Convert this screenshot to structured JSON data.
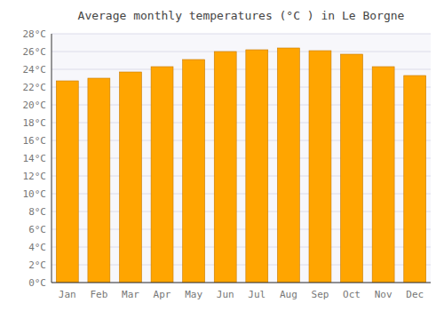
{
  "chart_data": {
    "type": "bar",
    "title": "Average monthly temperatures (°C ) in Le Borgne",
    "categories": [
      "Jan",
      "Feb",
      "Mar",
      "Apr",
      "May",
      "Jun",
      "Jul",
      "Aug",
      "Sep",
      "Oct",
      "Nov",
      "Dec"
    ],
    "values": [
      22.7,
      23.0,
      23.7,
      24.3,
      25.1,
      26.0,
      26.2,
      26.4,
      26.1,
      25.7,
      24.3,
      23.3
    ],
    "color": "#FFA500",
    "ylim": [
      0,
      28
    ],
    "yticks": [
      {
        "value": 0,
        "label": "0°C"
      },
      {
        "value": 2,
        "label": "2°C"
      },
      {
        "value": 4,
        "label": "4°C"
      },
      {
        "value": 6,
        "label": "6°C"
      },
      {
        "value": 8,
        "label": "8°C"
      },
      {
        "value": 10,
        "label": "10°C"
      },
      {
        "value": 12,
        "label": "12°C"
      },
      {
        "value": 14,
        "label": "14°C"
      },
      {
        "value": 16,
        "label": "16°C"
      },
      {
        "value": 18,
        "label": "18°C"
      },
      {
        "value": 20,
        "label": "20°C"
      },
      {
        "value": 22,
        "label": "22°C"
      },
      {
        "value": 24,
        "label": "24°C"
      },
      {
        "value": 26,
        "label": "26°C"
      },
      {
        "value": 28,
        "label": "28°C"
      }
    ],
    "grid": true
  }
}
